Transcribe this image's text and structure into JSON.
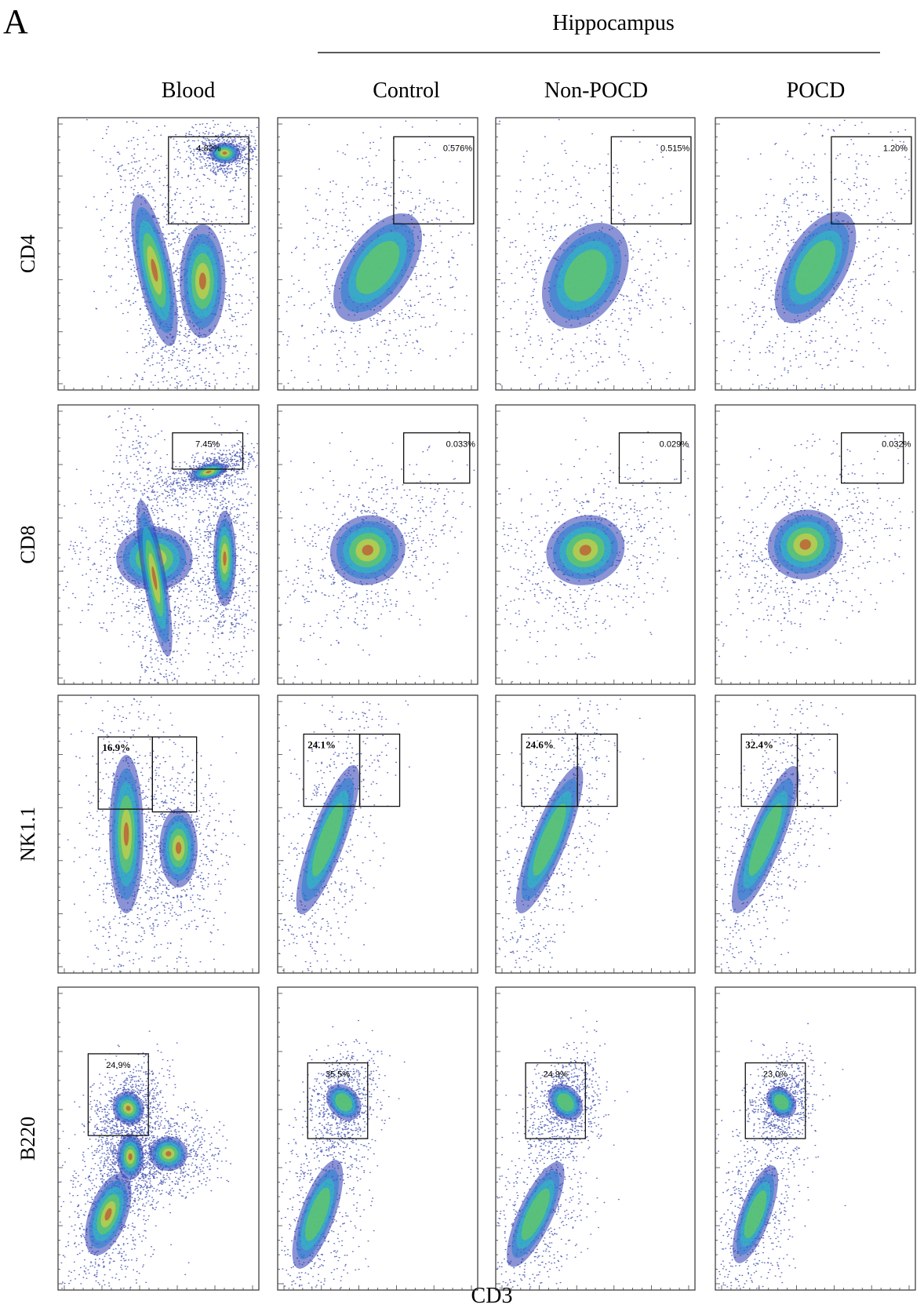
{
  "panel_label": "A",
  "group_label": "Hippocampus",
  "columns": [
    "Blood",
    "Control",
    "Non-POCD",
    "POCD"
  ],
  "rows": [
    {
      "label": "CD4",
      "gates": [
        "4.82%",
        "0.576%",
        "0.515%",
        "1.20%"
      ]
    },
    {
      "label": "CD8",
      "gates": [
        "7.45%",
        "0.033%",
        "0.029%",
        "0.032%"
      ]
    },
    {
      "label": "NK1.1",
      "gates": [
        "16.9%",
        "24.1%",
        "24.6%",
        "32.4%"
      ]
    },
    {
      "label": "B220",
      "gates": [
        "24.9%",
        "35.5%",
        "24.9%",
        "23.0%"
      ]
    }
  ],
  "x_axis_label": "CD3"
}
